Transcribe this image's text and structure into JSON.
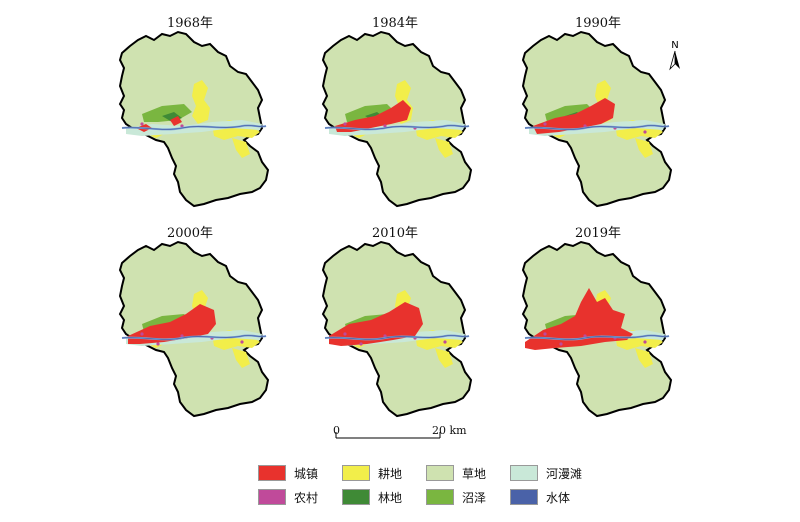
{
  "panels": [
    {
      "year": "1968年",
      "stage": 0
    },
    {
      "year": "1984年",
      "stage": 1
    },
    {
      "year": "1990年",
      "stage": 2
    },
    {
      "year": "2000年",
      "stage": 3
    },
    {
      "year": "2010年",
      "stage": 4
    },
    {
      "year": "2019年",
      "stage": 5
    }
  ],
  "north_arrow": {
    "label": "N"
  },
  "scale_bar": {
    "start_label": "0",
    "end_label": "20 km"
  },
  "legend": [
    {
      "label": "城镇",
      "color": "#e8322d"
    },
    {
      "label": "耕地",
      "color": "#f2ee4a"
    },
    {
      "label": "草地",
      "color": "#cfe2b0"
    },
    {
      "label": "河漫滩",
      "color": "#c9e8d8"
    },
    {
      "label": "农村",
      "color": "#c04a9a"
    },
    {
      "label": "林地",
      "color": "#3f8a36"
    },
    {
      "label": "沼泽",
      "color": "#7ab640"
    },
    {
      "label": "水体",
      "color": "#4a62a8"
    }
  ],
  "colors": {
    "border": "#000000",
    "river": "#7fa6d6"
  }
}
